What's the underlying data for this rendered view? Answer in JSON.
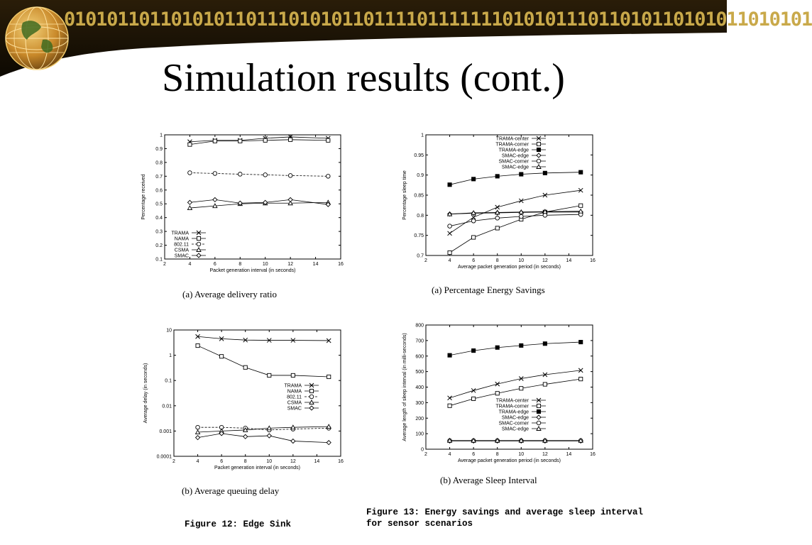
{
  "header": {
    "binary_text": "0101011011010101101110101011011110111111101010111011010110101011010101",
    "title": "Simulation results (cont.)",
    "colors": {
      "band_dark": "#1a1205",
      "band_mid": "#3a2a10",
      "binary": "#c9a94a",
      "globe": "#d9a23a"
    }
  },
  "captions": {
    "sub_a_left": "(a) Average delivery ratio",
    "sub_b_left": "(b) Average queuing delay",
    "sub_a_right": "(a) Percentage Energy Savings",
    "sub_b_right": "(b) Average Sleep Interval",
    "figure12": "Figure 12: Edge Sink",
    "figure13_line1": "Figure 13: Energy savings and average sleep interval",
    "figure13_line2": "for sensor scenarios"
  },
  "chart_data": [
    {
      "id": "delivery",
      "type": "line",
      "xlabel": "Packet generation interval (in seconds)",
      "ylabel": "Percentage received",
      "xlim": [
        2,
        16
      ],
      "ylim": [
        0.1,
        1
      ],
      "scale": "linear",
      "xticks": [
        "2",
        "4",
        "6",
        "8",
        "10",
        "12",
        "14",
        "16"
      ],
      "yticks": [
        "0.1",
        "0.2",
        "0.3",
        "0.4",
        "0.5",
        "0.6",
        "0.7",
        "0.8",
        "0.9",
        "1"
      ],
      "legend_position": "bottom-left",
      "x": [
        4,
        6,
        8,
        10,
        12,
        15
      ],
      "series": [
        {
          "name": "TRAMA",
          "marker": "x",
          "dash": false,
          "values": [
            0.95,
            0.96,
            0.96,
            0.975,
            0.985,
            0.975
          ]
        },
        {
          "name": "NAMA",
          "marker": "square",
          "dash": false,
          "values": [
            0.93,
            0.955,
            0.955,
            0.96,
            0.965,
            0.96
          ]
        },
        {
          "name": "802.11",
          "marker": "circle",
          "dash": true,
          "values": [
            0.725,
            0.72,
            0.715,
            0.71,
            0.705,
            0.7
          ]
        },
        {
          "name": "CSMA",
          "marker": "triangle",
          "dash": false,
          "values": [
            0.47,
            0.485,
            0.5,
            0.505,
            0.505,
            0.51
          ]
        },
        {
          "name": "SMAC",
          "marker": "diamond",
          "dash": false,
          "values": [
            0.51,
            0.53,
            0.505,
            0.51,
            0.53,
            0.495
          ]
        }
      ]
    },
    {
      "id": "queuing",
      "type": "line",
      "xlabel": "Packet generation interval (in seconds)",
      "ylabel": "Average delay (in seconds)",
      "xlim": [
        2,
        16
      ],
      "ylim": [
        0.0001,
        10
      ],
      "scale": "log",
      "xticks": [
        "2",
        "4",
        "6",
        "8",
        "10",
        "12",
        "14",
        "16"
      ],
      "yticks": [
        "0.0001",
        "0.001",
        "0.01",
        "0.1",
        "1",
        "10"
      ],
      "legend_position": "right",
      "x": [
        4,
        6,
        8,
        10,
        12,
        15
      ],
      "series": [
        {
          "name": "TRAMA",
          "marker": "x",
          "dash": false,
          "values": [
            5.5,
            4.5,
            4.0,
            3.9,
            3.9,
            3.8
          ]
        },
        {
          "name": "NAMA",
          "marker": "square",
          "dash": false,
          "values": [
            2.4,
            0.9,
            0.33,
            0.16,
            0.16,
            0.14
          ]
        },
        {
          "name": "802.11",
          "marker": "circle",
          "dash": true,
          "values": [
            0.0014,
            0.0014,
            0.0013,
            0.0011,
            0.0012,
            0.0013
          ]
        },
        {
          "name": "CSMA",
          "marker": "triangle",
          "dash": false,
          "values": [
            0.0009,
            0.001,
            0.0011,
            0.0013,
            0.0014,
            0.0015
          ]
        },
        {
          "name": "SMAC",
          "marker": "diamond",
          "dash": false,
          "values": [
            0.00055,
            0.0008,
            0.0006,
            0.00065,
            0.0004,
            0.00035
          ]
        }
      ]
    },
    {
      "id": "sleep_time",
      "type": "line",
      "xlabel": "Average packet generation period (in seconds)",
      "ylabel": "Percentage sleep time",
      "xlim": [
        2,
        16
      ],
      "ylim": [
        0.7,
        1
      ],
      "scale": "linear",
      "xticks": [
        "2",
        "4",
        "6",
        "8",
        "10",
        "12",
        "14",
        "16"
      ],
      "yticks": [
        "0.7",
        "0.75",
        "0.8",
        "0.85",
        "0.9",
        "0.95",
        "1"
      ],
      "legend_position": "top-right",
      "x": [
        4,
        6,
        8,
        10,
        12,
        15
      ],
      "series": [
        {
          "name": "TRAMA-center",
          "marker": "x",
          "dash": false,
          "values": [
            0.755,
            0.795,
            0.82,
            0.836,
            0.85,
            0.862
          ]
        },
        {
          "name": "TRAMA-corner",
          "marker": "square",
          "dash": false,
          "values": [
            0.707,
            0.745,
            0.768,
            0.79,
            0.808,
            0.824
          ]
        },
        {
          "name": "TRAMA-edge",
          "marker": "square-filled",
          "dash": false,
          "values": [
            0.876,
            0.89,
            0.897,
            0.902,
            0.905,
            0.907
          ]
        },
        {
          "name": "SMAC-edge",
          "marker": "diamond",
          "dash": false,
          "values": [
            0.803,
            0.805,
            0.806,
            0.807,
            0.808,
            0.808
          ]
        },
        {
          "name": "SMAC-corner",
          "marker": "circle",
          "dash": false,
          "values": [
            0.773,
            0.786,
            0.793,
            0.797,
            0.8,
            0.802
          ]
        },
        {
          "name": "SMAC-edge",
          "marker": "triangle",
          "dash": false,
          "values": [
            0.803,
            0.806,
            0.807,
            0.808,
            0.809,
            0.81
          ]
        }
      ]
    },
    {
      "id": "sleep_interval",
      "type": "line",
      "xlabel": "Average packet generation period (in seconds)",
      "ylabel": "Average length of sleep interval (in milli-seconds)",
      "xlim": [
        2,
        16
      ],
      "ylim": [
        0,
        800
      ],
      "scale": "linear",
      "xticks": [
        "2",
        "4",
        "6",
        "8",
        "10",
        "12",
        "14",
        "16"
      ],
      "yticks": [
        "0",
        "100",
        "200",
        "300",
        "400",
        "500",
        "600",
        "700",
        "800"
      ],
      "legend_position": "bottom-right",
      "x": [
        4,
        6,
        8,
        10,
        12,
        15
      ],
      "series": [
        {
          "name": "TRAMA-center",
          "marker": "x",
          "dash": false,
          "values": [
            330,
            378,
            420,
            455,
            480,
            508
          ]
        },
        {
          "name": "TRAMA-corner",
          "marker": "square",
          "dash": false,
          "values": [
            280,
            325,
            360,
            392,
            418,
            452
          ]
        },
        {
          "name": "TRAMA-edge",
          "marker": "square-filled",
          "dash": false,
          "values": [
            605,
            635,
            655,
            668,
            680,
            690
          ]
        },
        {
          "name": "SMAC-edge",
          "marker": "diamond",
          "dash": false,
          "values": [
            53,
            53,
            53,
            53,
            53,
            53
          ]
        },
        {
          "name": "SMAC-corner",
          "marker": "circle",
          "dash": false,
          "values": [
            55,
            55,
            55,
            55,
            55,
            55
          ]
        },
        {
          "name": "SMAC-edge",
          "marker": "triangle",
          "dash": false,
          "values": [
            56,
            56,
            56,
            56,
            56,
            56
          ]
        }
      ]
    }
  ]
}
